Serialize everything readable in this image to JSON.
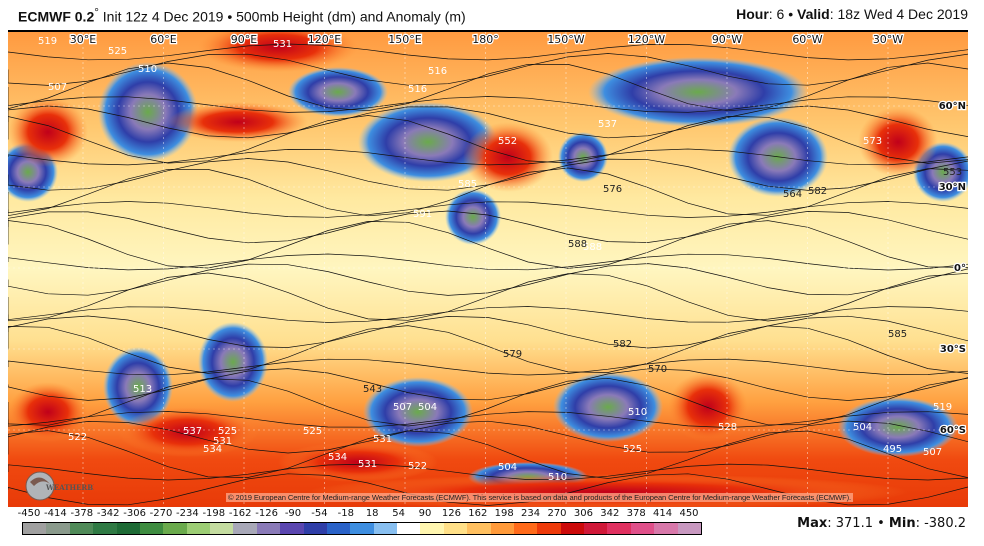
{
  "header": {
    "model": "ECMWF 0.2",
    "degree": "°",
    "title_rest": " Init 12z 4 Dec 2019 • 500mb Height (dm) and Anomaly (m)",
    "hour_label": "Hour",
    "hour": ": 6 • ",
    "valid_label": "Valid",
    "valid": ": 18z Wed 4 Dec 2019"
  },
  "map": {
    "longitudes": [
      "30°E",
      "60°E",
      "90°E",
      "120°E",
      "150°E",
      "180°",
      "150°W",
      "120°W",
      "90°W",
      "60°W",
      "30°W"
    ],
    "latitudes": [
      "60°N",
      "30°N",
      "0°",
      "30°S",
      "60°S"
    ],
    "contour_labels": [
      "519",
      "525",
      "531",
      "516",
      "510",
      "507",
      "552",
      "537",
      "585",
      "591",
      "516",
      "588",
      "573",
      "582",
      "553",
      "564",
      "576",
      "588",
      "585",
      "579",
      "582",
      "570",
      "543",
      "513",
      "522",
      "537",
      "531",
      "534",
      "507",
      "504",
      "510",
      "525",
      "531",
      "534",
      "531",
      "522",
      "504",
      "510",
      "519",
      "495",
      "528",
      "525",
      "525",
      "504",
      "507"
    ]
  },
  "copyright": "© 2019 European Centre for Medium-range Weather Forecasts (ECMWF). This service is based on data and products of the European Centre for Medium-range Weather Forecasts (ECMWF).",
  "logo_text": "WEATHERBELL",
  "colorbar": {
    "ticks": [
      "-450",
      "-414",
      "-378",
      "-342",
      "-306",
      "-270",
      "-234",
      "-198",
      "-162",
      "-126",
      "-90",
      "-54",
      "-18",
      "18",
      "54",
      "90",
      "126",
      "162",
      "198",
      "234",
      "270",
      "306",
      "342",
      "378",
      "414",
      "450"
    ],
    "colors": [
      "#a0a0a0",
      "#8a9a8c",
      "#4f8a58",
      "#2f7a44",
      "#1e6b36",
      "#3e8c40",
      "#6aaa4c",
      "#9ccd74",
      "#c4dca0",
      "#a8a8b8",
      "#8a7ab8",
      "#5a46b0",
      "#2f3ea8",
      "#2a62c8",
      "#3e8ee0",
      "#88bff0",
      "#ffffff",
      "#fff6b0",
      "#ffe088",
      "#ffc060",
      "#ff9a3a",
      "#ff6a1a",
      "#ee3a0a",
      "#cc0a0a",
      "#d01838",
      "#e03060",
      "#e0508a",
      "#d878aa",
      "#c898c0"
    ]
  },
  "stats": {
    "max_label": "Max",
    "max": ": 371.1 • ",
    "min_label": "Min",
    "min": ": -380.2"
  }
}
